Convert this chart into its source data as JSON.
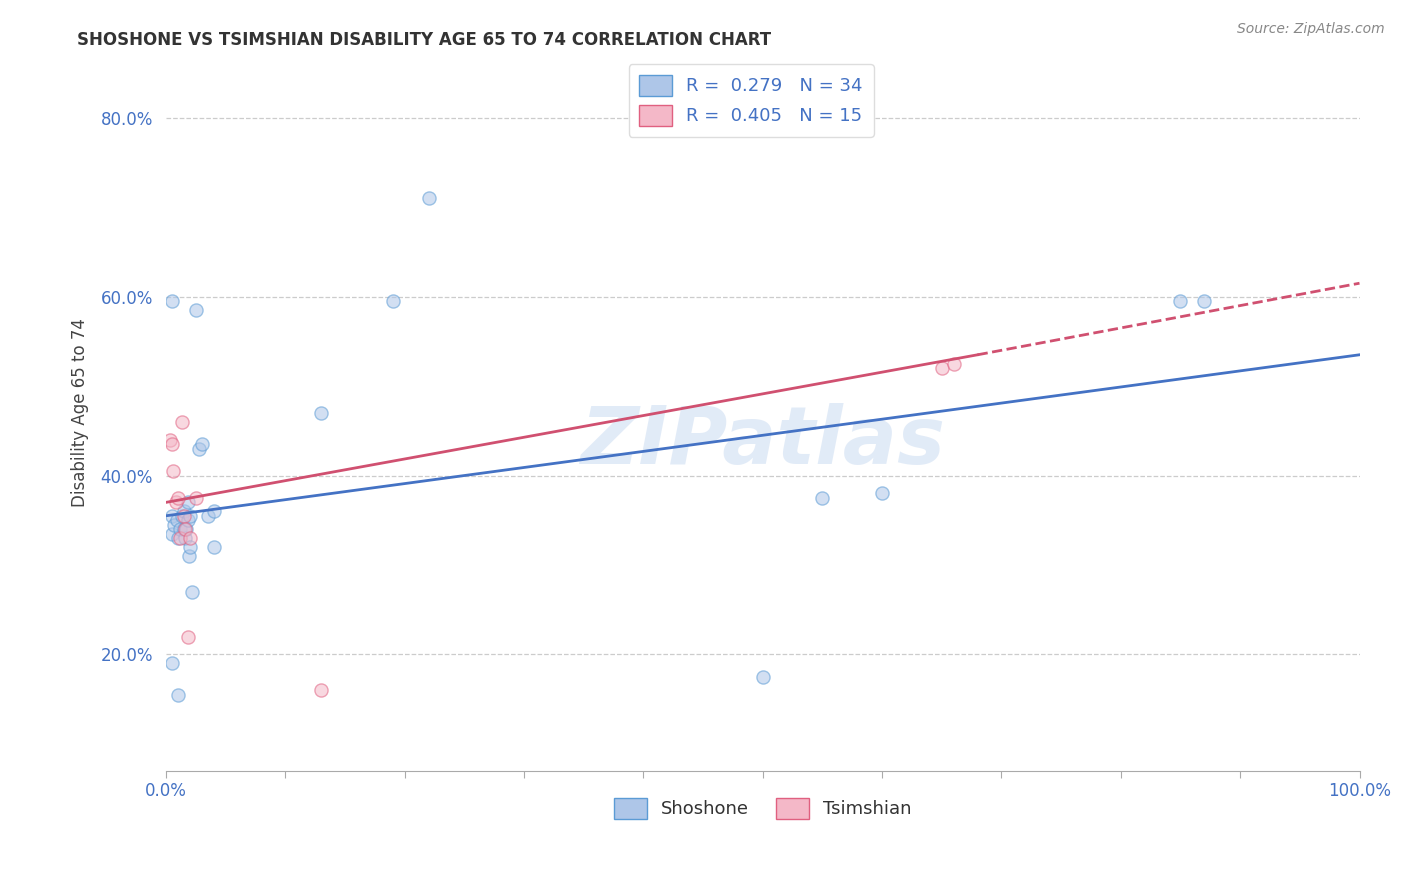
{
  "title": "SHOSHONE VS TSIMSHIAN DISABILITY AGE 65 TO 74 CORRELATION CHART",
  "source": "Source: ZipAtlas.com",
  "ylabel": "Disability Age 65 to 74",
  "xlim": [
    0,
    1.0
  ],
  "ylim": [
    0.07,
    0.87
  ],
  "xtick_positions": [
    0.0,
    0.1,
    0.2,
    0.3,
    0.4,
    0.5,
    0.6,
    0.7,
    0.8,
    0.9,
    1.0
  ],
  "xtick_labels_show": {
    "0.0": "0.0%",
    "1.0": "100.0%"
  },
  "ytick_positions": [
    0.2,
    0.4,
    0.6,
    0.8
  ],
  "ytick_labels": [
    "20.0%",
    "40.0%",
    "60.0%",
    "80.0%"
  ],
  "shoshone_x": [
    0.005,
    0.005,
    0.007,
    0.009,
    0.01,
    0.012,
    0.013,
    0.015,
    0.015,
    0.016,
    0.017,
    0.018,
    0.018,
    0.019,
    0.02,
    0.02,
    0.022,
    0.025,
    0.028,
    0.03,
    0.035,
    0.04,
    0.04,
    0.13,
    0.19,
    0.22,
    0.5,
    0.55,
    0.6,
    0.85,
    0.87,
    0.005,
    0.01,
    0.005
  ],
  "shoshone_y": [
    0.335,
    0.355,
    0.345,
    0.35,
    0.33,
    0.34,
    0.355,
    0.36,
    0.34,
    0.33,
    0.34,
    0.35,
    0.37,
    0.31,
    0.32,
    0.355,
    0.27,
    0.585,
    0.43,
    0.435,
    0.355,
    0.36,
    0.32,
    0.47,
    0.595,
    0.71,
    0.175,
    0.375,
    0.38,
    0.595,
    0.595,
    0.19,
    0.155,
    0.595
  ],
  "tsimshian_x": [
    0.003,
    0.005,
    0.006,
    0.008,
    0.01,
    0.012,
    0.013,
    0.015,
    0.016,
    0.018,
    0.02,
    0.025,
    0.65,
    0.66,
    0.13
  ],
  "tsimshian_y": [
    0.44,
    0.435,
    0.405,
    0.37,
    0.375,
    0.33,
    0.46,
    0.355,
    0.34,
    0.22,
    0.33,
    0.375,
    0.52,
    0.525,
    0.16
  ],
  "shoshone_color": "#aec6e8",
  "shoshone_edge_color": "#5b9bd5",
  "tsimshian_color": "#f4b8c8",
  "tsimshian_edge_color": "#e06080",
  "shoshone_line_color": "#4472c4",
  "tsimshian_line_color": "#d05070",
  "shoshone_R": 0.279,
  "shoshone_N": 34,
  "tsimshian_R": 0.405,
  "tsimshian_N": 15,
  "shoshone_line": [
    0.0,
    0.355,
    1.0,
    0.535
  ],
  "tsimshian_line_solid": [
    0.0,
    0.37,
    0.68,
    0.535
  ],
  "tsimshian_line_dash": [
    0.68,
    0.535,
    1.0,
    0.615
  ],
  "watermark": "ZIPatlas",
  "marker_size": 90,
  "marker_alpha": 0.55,
  "background_color": "#ffffff",
  "grid_color": "#cccccc",
  "tick_color": "#4472c4",
  "title_color": "#333333",
  "source_color": "#888888"
}
